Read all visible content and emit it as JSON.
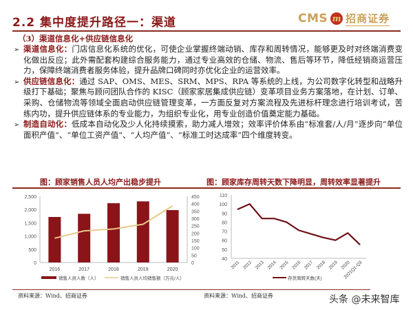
{
  "header": {
    "title": "2.2 集中度提升路径一：渠道",
    "logo": {
      "cms": "CMS",
      "mark": "m",
      "cn": "招商证券"
    }
  },
  "subtitle": "（3）渠道信息化+供应链信息化",
  "bullets": [
    {
      "lead": "渠道信息化：",
      "text": "门店信息化系统的优化，可使企业掌握终端动销、库存和周转情况，能够更及时对终端消费变化做出反应；此外需配套构建综合服务能力，通过专业高效的仓储、物流、售后等环节，降低经销商运营压力，保障终端消费者服务体验，提升品牌口碑同时亦优化企业的运营效率。"
    },
    {
      "lead": "供应链信息化：",
      "text": "通过 SAP、OMS、MES、SRM、MPS、RPA 等系统的上线，为公司数字化转型和战略升级打下基础；聚焦与顾问团队合作的 KISC（顾家家居集成供应链）变革项目业务方案落地，在计划、订单、采购、仓储物流等领域全面启动供应链管理变革，一方面反复对方案流程及先进标杆理念进行培训考试，苦练内功，提升供应链体系的专业能力，为组织专业化，用专业创造价值奠定能力基础。"
    },
    {
      "lead": "制造自动化：",
      "text": "低成本自动化及少人化持续摸索，助力减人增效；效率评价体系由“标准套/人/月”逐步向“单位面积产值”、“单位工资产值”、“人均产值”、“标准工时达成率”四个维度转变。"
    }
  ],
  "figures": {
    "left_caption": "图：顾家销售人员人均产出稳步提升",
    "right_caption": "图：顾家库存周转天数下降明显，周转效率显著提升",
    "left_source": "资料来源：Wind、招商证券",
    "right_source": "资料来源：Wind、招商证券"
  },
  "watermark": "头条 @未来智库",
  "colors": {
    "brand_red": "#8b1a1a",
    "bar": "#8b1419",
    "line_gold": "#e8c88a",
    "logo_gold": "#c9a25a"
  },
  "chart_data": [
    {
      "type": "bar",
      "title": "顾家销售人员人均产出稳步提升",
      "categories": [
        "2016",
        "2017",
        "2018",
        "2019",
        "2020"
      ],
      "series": [
        {
          "name": "销售人员人数（人）",
          "type": "bar",
          "axis": "left",
          "values": [
            1720,
            1840,
            2240,
            2310,
            1980
          ]
        },
        {
          "name": "销售人员人均销售额（万元/人）",
          "type": "line",
          "axis": "right",
          "values": [
            165,
            215,
            228,
            260,
            385
          ]
        }
      ],
      "ylim_left": [
        0,
        2500
      ],
      "yticks_left": [
        "0",
        "500",
        "1,000",
        "1,500",
        "2,000",
        "2,500"
      ],
      "ylim_right": [
        0,
        450
      ],
      "yticks_right": [
        "0",
        "50",
        "100",
        "150",
        "200",
        "250",
        "300",
        "350",
        "400",
        "450"
      ],
      "legend_position": "bottom",
      "grid": false
    },
    {
      "type": "line",
      "title": "顾家库存周转天数下降明显，周转效率显著提升",
      "categories": [
        "2011",
        "2012",
        "2013",
        "2014",
        "2015",
        "2016",
        "2017",
        "2018",
        "2019",
        "2020",
        "2021Q1-Q3"
      ],
      "series": [
        {
          "name": "存货周转天数(天)",
          "values": [
            94,
            100,
            84,
            84,
            80,
            71,
            67,
            63,
            60,
            68,
            55
          ]
        }
      ],
      "ylim": [
        40,
        110
      ],
      "yticks": [
        "40",
        "50",
        "60",
        "70",
        "80",
        "90",
        "100",
        "110"
      ],
      "legend_position": "bottom",
      "grid": false
    }
  ]
}
